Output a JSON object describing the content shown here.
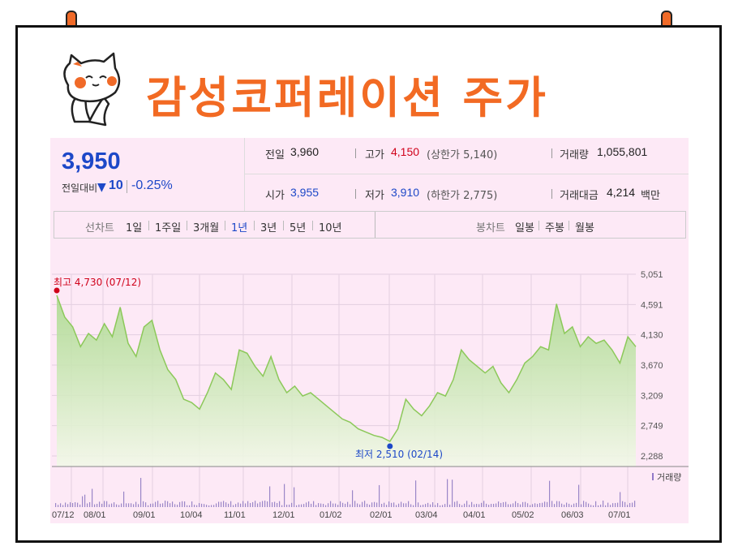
{
  "title": "감성코퍼레이션 주가",
  "colors": {
    "accent": "#f26a23",
    "up": "#d0021b",
    "down": "#1d48c8",
    "line": "#8cc85a"
  },
  "quote": {
    "price": "3,950",
    "change_label": "전일대비",
    "change_arrow": "▼",
    "change_value": "10",
    "change_pct": "-0.25%",
    "prev_label": "전일",
    "prev_value": "3,960",
    "high_label": "고가",
    "high_value": "4,150",
    "upper_limit": "(상한가 5,140)",
    "volume_label": "거래량",
    "volume_value": "1,055,801",
    "open_label": "시가",
    "open_value": "3,955",
    "low_label": "저가",
    "low_value": "3,910",
    "lower_limit": "(하한가 2,775)",
    "amount_label": "거래대금",
    "amount_value": "4,214",
    "amount_unit": "백만"
  },
  "tabs": {
    "line_chart": "선차트",
    "periods": [
      "1일",
      "1주일",
      "3개월",
      "1년",
      "3년",
      "5년",
      "10년"
    ],
    "selected_period": "1년",
    "candle_chart": "봉차트",
    "candle_periods": [
      "일봉",
      "주봉",
      "월봉"
    ]
  },
  "chart_data": {
    "type": "area",
    "y_ticks": [
      "5,051",
      "4,591",
      "4,130",
      "3,670",
      "3,209",
      "2,749",
      "2,288"
    ],
    "ylim": [
      2288,
      5051
    ],
    "x_ticks": [
      "07/12",
      "08/01",
      "09/01",
      "10/04",
      "11/01",
      "12/01",
      "01/02",
      "02/01",
      "03/04",
      "04/01",
      "05/02",
      "06/03",
      "07/01"
    ],
    "max_annotation": "최고 4,730 (07/12)",
    "min_annotation": "최저 2,510 (02/14)",
    "volume_label": "거래량",
    "values": [
      4730,
      4400,
      4250,
      3950,
      4150,
      4050,
      4300,
      4100,
      4550,
      4000,
      3800,
      4250,
      4350,
      3900,
      3600,
      3450,
      3150,
      3100,
      3000,
      3250,
      3550,
      3450,
      3300,
      3900,
      3850,
      3650,
      3500,
      3800,
      3450,
      3250,
      3350,
      3200,
      3250,
      3150,
      3050,
      2950,
      2850,
      2800,
      2700,
      2650,
      2600,
      2570,
      2510,
      2700,
      3150,
      3000,
      2900,
      3050,
      3250,
      3200,
      3450,
      3900,
      3750,
      3650,
      3550,
      3650,
      3400,
      3250,
      3450,
      3700,
      3800,
      3950,
      3900,
      4600,
      4150,
      4250,
      3950,
      4100,
      4000,
      4050,
      3900,
      3700,
      4100,
      3950
    ]
  }
}
